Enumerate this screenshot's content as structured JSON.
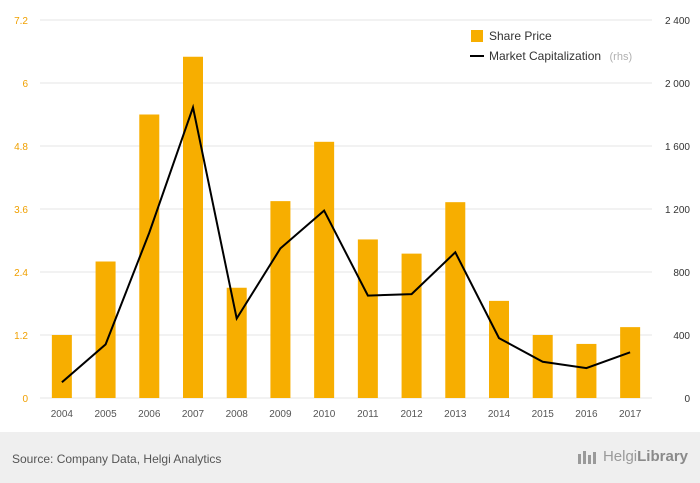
{
  "chart_data": {
    "type": "bar+line",
    "categories": [
      "2004",
      "2005",
      "2006",
      "2007",
      "2008",
      "2009",
      "2010",
      "2011",
      "2012",
      "2013",
      "2014",
      "2015",
      "2016",
      "2017"
    ],
    "series": [
      {
        "name": "Share Price",
        "type": "bar",
        "axis": "left",
        "values": [
          1.2,
          2.6,
          5.4,
          6.5,
          2.1,
          3.75,
          4.88,
          3.02,
          2.75,
          3.73,
          1.85,
          1.2,
          1.03,
          1.35
        ]
      },
      {
        "name": "Market Capitalization",
        "type": "line",
        "axis": "right",
        "values": [
          100,
          340,
          1050,
          1845,
          505,
          950,
          1190,
          650,
          660,
          925,
          380,
          230,
          190,
          290
        ]
      }
    ],
    "left_axis": {
      "ylim": [
        0,
        7.2
      ],
      "ticks": [
        "0",
        "1.2",
        "2.4",
        "3.6",
        "4.8",
        "6",
        "7.2"
      ]
    },
    "right_axis": {
      "ylim": [
        0,
        2400
      ],
      "ticks": [
        "0",
        "400",
        "800",
        "1 200",
        "1 600",
        "2 000",
        "2 400"
      ]
    },
    "legend": {
      "position": "top-right",
      "bar_label": "Share Price",
      "line_label": "Market Capitalization",
      "line_suffix": "(rhs)"
    },
    "grid": true
  },
  "colors": {
    "bar": "#f7ae00",
    "line": "#000000",
    "grid": "#e6e6e6",
    "left_tick": "#f0a000"
  },
  "footer": {
    "source": "Source: Company Data, Helgi Analytics",
    "brand_light": "Helgi",
    "brand_bold": "Library"
  }
}
